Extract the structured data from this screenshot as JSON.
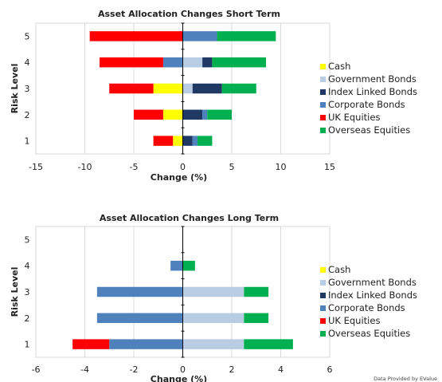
{
  "colors": {
    "Cash": "#ffff00",
    "Government Bonds": "#b8cce4",
    "Index Linked Bonds": "#1f3864",
    "Corporate Bonds": "#4f81bd",
    "UK Equities": "#ff0000",
    "Overseas Equities": "#00b050"
  },
  "footer": "Data Provided by EValue",
  "chart_data": [
    {
      "type": "bar",
      "orientation": "horizontal",
      "stacked": "diverging",
      "title": "Asset Allocation Changes Short Term",
      "xlabel": "Change (%)",
      "ylabel": "Risk Level",
      "xlim": [
        -15,
        15
      ],
      "xticks": [
        -15,
        -10,
        -5,
        0,
        5,
        10,
        15
      ],
      "categories": [
        "1",
        "2",
        "3",
        "4",
        "5"
      ],
      "legend_position": "right",
      "grid": "vertical",
      "series": [
        {
          "name": "Cash",
          "values": [
            -1,
            -2,
            -3,
            0,
            0
          ]
        },
        {
          "name": "Government Bonds",
          "values": [
            0,
            0,
            1,
            2,
            0
          ]
        },
        {
          "name": "Index Linked Bonds",
          "values": [
            1,
            2,
            3,
            1,
            0
          ]
        },
        {
          "name": "Corporate Bonds",
          "values": [
            0.5,
            0.5,
            0,
            -2,
            3.5
          ]
        },
        {
          "name": "UK Equities",
          "values": [
            -2,
            -3,
            -4.5,
            -6.5,
            -9.5
          ]
        },
        {
          "name": "Overseas Equities",
          "values": [
            1.5,
            2.5,
            3.5,
            5.5,
            6
          ]
        }
      ]
    },
    {
      "type": "bar",
      "orientation": "horizontal",
      "stacked": "diverging",
      "title": "Asset Allocation Changes Long Term",
      "xlabel": "Change (%)",
      "ylabel": "Risk Level",
      "xlim": [
        -6,
        6
      ],
      "xticks": [
        -6,
        -4,
        -2,
        0,
        2,
        4,
        6
      ],
      "categories": [
        "1",
        "2",
        "3",
        "4",
        "5"
      ],
      "legend_position": "right",
      "grid": "vertical",
      "series": [
        {
          "name": "Cash",
          "values": [
            0,
            0,
            0,
            0,
            0
          ]
        },
        {
          "name": "Government Bonds",
          "values": [
            2.5,
            2.5,
            2.5,
            0,
            0
          ]
        },
        {
          "name": "Index Linked Bonds",
          "values": [
            0,
            0,
            0,
            0,
            0
          ]
        },
        {
          "name": "Corporate Bonds",
          "values": [
            -3,
            -3.5,
            -3.5,
            -0.5,
            0
          ]
        },
        {
          "name": "UK Equities",
          "values": [
            -1.5,
            0,
            0,
            0,
            0
          ]
        },
        {
          "name": "Overseas Equities",
          "values": [
            2,
            1,
            1,
            0.5,
            0
          ]
        }
      ]
    }
  ]
}
